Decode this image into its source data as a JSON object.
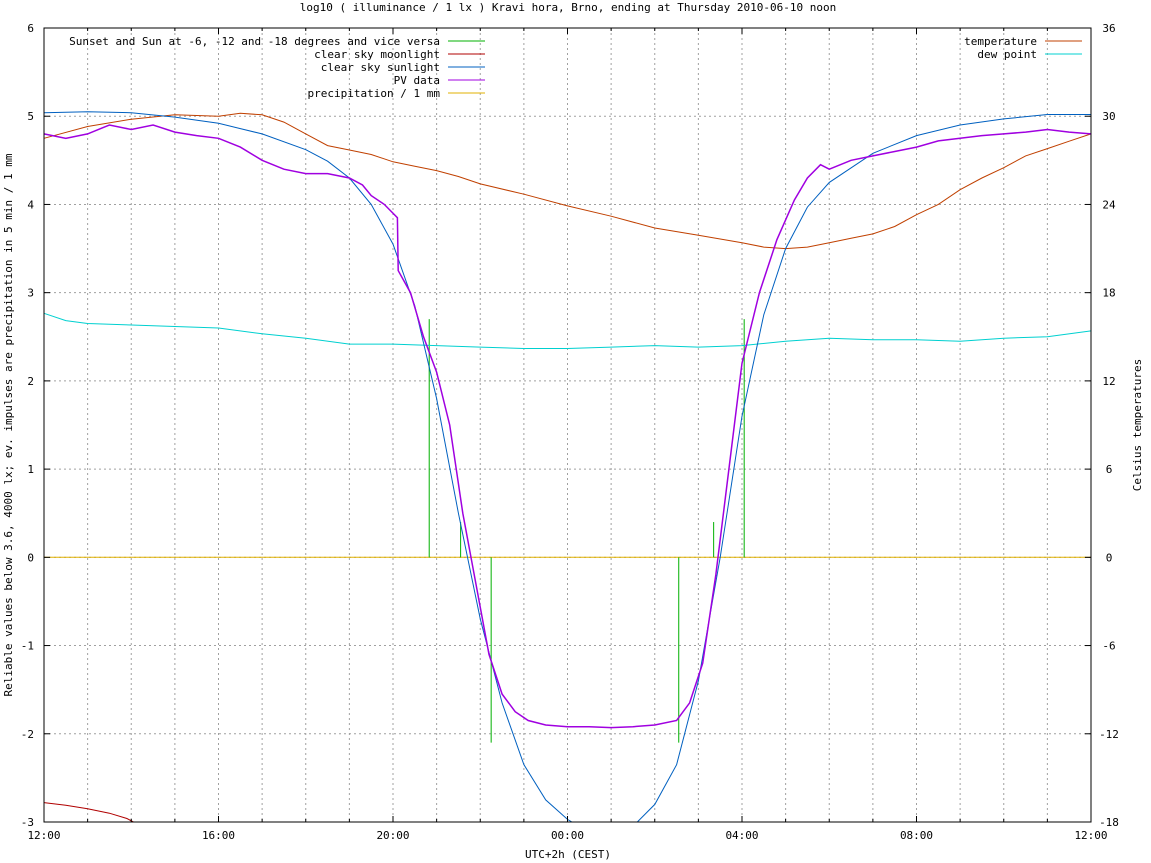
{
  "chart_data": {
    "type": "line",
    "title": "log10 ( illuminance / 1 lx ) Kravi hora, Brno, ending at Thursday 2010-06-10 noon",
    "xlabel": "UTC+2h (CEST)",
    "ylabel": "Reliable values below 3.6, 4000 lx; ev. impulses are precipitation in 5 min / 1 mm",
    "y2label": "Celsius temperatures",
    "xlim": [
      0,
      24
    ],
    "ylim": [
      -3,
      6
    ],
    "y2lim": [
      -18,
      36
    ],
    "x_ticks": [
      0,
      4,
      8,
      12,
      16,
      20,
      24
    ],
    "x_tick_labels": [
      "12:00",
      "16:00",
      "20:00",
      "00:00",
      "04:00",
      "08:00",
      "12:00"
    ],
    "y_ticks": [
      -3,
      -2,
      -1,
      0,
      1,
      2,
      3,
      4,
      5,
      6
    ],
    "y2_ticks": [
      -18,
      -12,
      -6,
      0,
      6,
      12,
      18,
      24,
      30,
      36
    ],
    "grid": true,
    "legend_left_position": "top-left",
    "legend_right_position": "top-right",
    "series": [
      {
        "name": "Sunset and Sun at -6, -12 and -18 degrees and vice versa",
        "color": "#00b000",
        "axis": "y1",
        "style": "impulses",
        "impulses": [
          [
            8.83,
            2.7
          ],
          [
            9.55,
            0.4
          ],
          [
            10.25,
            -2.1
          ],
          [
            14.55,
            -2.1
          ],
          [
            15.35,
            0.4
          ],
          [
            16.05,
            2.7
          ]
        ]
      },
      {
        "name": "clear sky moonlight",
        "color": "#b00000",
        "axis": "y1",
        "points": [
          [
            0,
            -2.78
          ],
          [
            0.5,
            -2.81
          ],
          [
            1,
            -2.85
          ],
          [
            1.5,
            -2.9
          ],
          [
            1.9,
            -2.96
          ],
          [
            2.05,
            -3
          ]
        ]
      },
      {
        "name": "clear sky sunlight",
        "color": "#0060c0",
        "axis": "y1",
        "points": [
          [
            0,
            5.04
          ],
          [
            1,
            5.05
          ],
          [
            2,
            5.04
          ],
          [
            3,
            4.99
          ],
          [
            4,
            4.92
          ],
          [
            5,
            4.8
          ],
          [
            6,
            4.62
          ],
          [
            6.5,
            4.49
          ],
          [
            7,
            4.3
          ],
          [
            7.5,
            4.0
          ],
          [
            8,
            3.55
          ],
          [
            8.5,
            2.85
          ],
          [
            9,
            1.8
          ],
          [
            9.5,
            0.5
          ],
          [
            10,
            -0.7
          ],
          [
            10.5,
            -1.65
          ],
          [
            11,
            -2.35
          ],
          [
            11.5,
            -2.75
          ],
          [
            12,
            -2.97
          ],
          [
            12.1,
            -3
          ],
          [
            13.6,
            -3
          ],
          [
            14,
            -2.8
          ],
          [
            14.5,
            -2.35
          ],
          [
            15,
            -1.4
          ],
          [
            15.5,
            0.0
          ],
          [
            16,
            1.6
          ],
          [
            16.5,
            2.75
          ],
          [
            17,
            3.5
          ],
          [
            17.5,
            3.97
          ],
          [
            18,
            4.25
          ],
          [
            19,
            4.58
          ],
          [
            20,
            4.78
          ],
          [
            21,
            4.9
          ],
          [
            22,
            4.97
          ],
          [
            23,
            5.02
          ],
          [
            24,
            5.02
          ]
        ]
      },
      {
        "name": "PV data",
        "color": "#a000e0",
        "axis": "y1",
        "points": [
          [
            0,
            4.8
          ],
          [
            0.5,
            4.75
          ],
          [
            1,
            4.8
          ],
          [
            1.5,
            4.9
          ],
          [
            2,
            4.85
          ],
          [
            2.5,
            4.9
          ],
          [
            3,
            4.82
          ],
          [
            3.5,
            4.78
          ],
          [
            4,
            4.75
          ],
          [
            4.5,
            4.65
          ],
          [
            5,
            4.5
          ],
          [
            5.5,
            4.4
          ],
          [
            6,
            4.35
          ],
          [
            6.5,
            4.35
          ],
          [
            7,
            4.3
          ],
          [
            7.3,
            4.22
          ],
          [
            7.5,
            4.1
          ],
          [
            7.8,
            4.0
          ],
          [
            8.1,
            3.85
          ],
          [
            8.12,
            3.25
          ],
          [
            8.4,
            3.0
          ],
          [
            8.7,
            2.5
          ],
          [
            9.0,
            2.1
          ],
          [
            9.3,
            1.5
          ],
          [
            9.6,
            0.5
          ],
          [
            9.9,
            -0.3
          ],
          [
            10.2,
            -1.1
          ],
          [
            10.5,
            -1.55
          ],
          [
            10.8,
            -1.75
          ],
          [
            11.1,
            -1.85
          ],
          [
            11.5,
            -1.9
          ],
          [
            12,
            -1.92
          ],
          [
            12.5,
            -1.92
          ],
          [
            13,
            -1.93
          ],
          [
            13.5,
            -1.92
          ],
          [
            14,
            -1.9
          ],
          [
            14.5,
            -1.85
          ],
          [
            14.8,
            -1.65
          ],
          [
            15.1,
            -1.2
          ],
          [
            15.4,
            -0.2
          ],
          [
            15.7,
            1.0
          ],
          [
            16.0,
            2.2
          ],
          [
            16.4,
            3.0
          ],
          [
            16.8,
            3.6
          ],
          [
            17.2,
            4.05
          ],
          [
            17.5,
            4.3
          ],
          [
            17.8,
            4.45
          ],
          [
            18,
            4.4
          ],
          [
            18.5,
            4.5
          ],
          [
            19,
            4.55
          ],
          [
            19.5,
            4.6
          ],
          [
            20,
            4.65
          ],
          [
            20.5,
            4.72
          ],
          [
            21,
            4.75
          ],
          [
            21.5,
            4.78
          ],
          [
            22,
            4.8
          ],
          [
            22.5,
            4.82
          ],
          [
            23,
            4.85
          ],
          [
            23.5,
            4.82
          ],
          [
            24,
            4.8
          ]
        ]
      },
      {
        "name": "precipitation / 1 mm",
        "color": "#e0b000",
        "axis": "y1",
        "points": [
          [
            0,
            0
          ],
          [
            24,
            0
          ]
        ]
      },
      {
        "name": "temperature",
        "color": "#c04000",
        "axis": "y2",
        "points": [
          [
            0,
            28.5
          ],
          [
            1,
            29.3
          ],
          [
            2,
            29.8
          ],
          [
            3,
            30.1
          ],
          [
            4,
            30.0
          ],
          [
            4.5,
            30.2
          ],
          [
            5,
            30.1
          ],
          [
            5.5,
            29.6
          ],
          [
            6,
            28.8
          ],
          [
            6.5,
            28.0
          ],
          [
            7,
            27.7
          ],
          [
            7.5,
            27.4
          ],
          [
            8,
            26.9
          ],
          [
            8.5,
            26.6
          ],
          [
            9,
            26.3
          ],
          [
            9.5,
            25.9
          ],
          [
            10,
            25.4
          ],
          [
            11,
            24.7
          ],
          [
            12,
            23.9
          ],
          [
            13,
            23.2
          ],
          [
            14,
            22.4
          ],
          [
            15,
            21.9
          ],
          [
            16,
            21.4
          ],
          [
            16.5,
            21.1
          ],
          [
            17,
            21.0
          ],
          [
            17.5,
            21.1
          ],
          [
            18,
            21.4
          ],
          [
            18.5,
            21.7
          ],
          [
            19,
            22.0
          ],
          [
            19.5,
            22.5
          ],
          [
            20,
            23.3
          ],
          [
            20.5,
            24.0
          ],
          [
            21,
            25.0
          ],
          [
            21.5,
            25.8
          ],
          [
            22,
            26.5
          ],
          [
            22.5,
            27.3
          ],
          [
            23,
            27.8
          ],
          [
            23.5,
            28.3
          ],
          [
            24,
            28.8
          ]
        ]
      },
      {
        "name": "dew point",
        "color": "#00d0d0",
        "axis": "y2",
        "points": [
          [
            0,
            16.6
          ],
          [
            0.5,
            16.1
          ],
          [
            1,
            15.9
          ],
          [
            2,
            15.8
          ],
          [
            3,
            15.7
          ],
          [
            4,
            15.6
          ],
          [
            5,
            15.2
          ],
          [
            6,
            14.9
          ],
          [
            7,
            14.5
          ],
          [
            8,
            14.5
          ],
          [
            9,
            14.4
          ],
          [
            10,
            14.3
          ],
          [
            11,
            14.2
          ],
          [
            12,
            14.2
          ],
          [
            13,
            14.3
          ],
          [
            14,
            14.4
          ],
          [
            15,
            14.3
          ],
          [
            16,
            14.4
          ],
          [
            17,
            14.7
          ],
          [
            18,
            14.9
          ],
          [
            19,
            14.8
          ],
          [
            20,
            14.8
          ],
          [
            21,
            14.7
          ],
          [
            22,
            14.9
          ],
          [
            23,
            15.0
          ],
          [
            24,
            15.4
          ]
        ]
      }
    ]
  }
}
